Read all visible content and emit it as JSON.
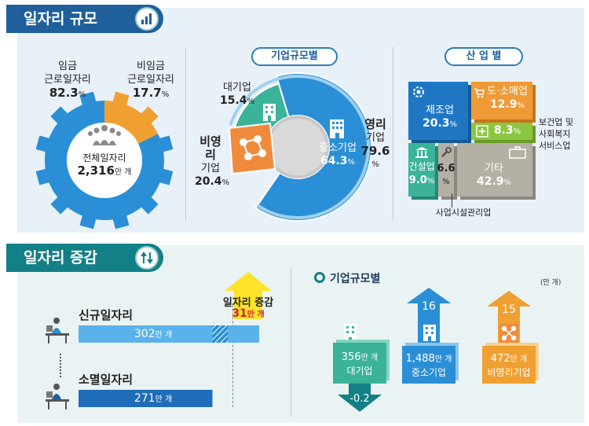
{
  "sections": {
    "size_title": "일자리 규모",
    "change_title": "일자리 증감"
  },
  "size": {
    "gear": {
      "wage_label_1": "임금",
      "wage_label_2": "근로일자리",
      "wage_pct": "82.3",
      "nonwage_label_1": "비임금",
      "nonwage_label_2": "근로일자리",
      "nonwage_pct": "17.7",
      "total_label": "전체일자리",
      "total_value": "2,316",
      "total_unit": "만 개"
    },
    "by_firm": {
      "title": "기업규모별",
      "large_label": "대기업",
      "large_pct": "15.4",
      "sme_label": "중소기업",
      "sme_pct": "64.3",
      "profit_label_1": "영리",
      "profit_label_2": "기업",
      "profit_pct": "79.6",
      "nonprofit_label_1": "비영리",
      "nonprofit_label_2": "기업",
      "nonprofit_pct": "20.4"
    },
    "by_industry": {
      "title": "산 업 별",
      "manuf_label": "제조업",
      "manuf_pct": "20.3",
      "retail_label": "도·소매업",
      "retail_pct": "12.9",
      "health_pct": "8.3",
      "health_label_1": "보건업 및",
      "health_label_2": "사회복지",
      "health_label_3": "서비스업",
      "constr_label": "건설업",
      "constr_pct": "9.0",
      "facility_pct": "6.6",
      "facility_label": "사업시설관리업",
      "other_label": "기타",
      "other_pct": "42.9"
    },
    "pct_sign": "%"
  },
  "change": {
    "new_jobs_label": "신규일자리",
    "new_jobs_value": "302",
    "lost_jobs_label": "소멸일자리",
    "lost_jobs_value": "271",
    "net_label": "일자리 증감",
    "net_value": "31",
    "unit": "만 개",
    "by_firm_title": "기업규모별",
    "unit_note": "(만 개)",
    "large": {
      "value": "356",
      "label": "대기업",
      "change": "-0.2"
    },
    "sme": {
      "value": "1,488",
      "label": "중소기업",
      "change": "16"
    },
    "nonprofit": {
      "value": "472",
      "label": "비영리기업",
      "change": "15"
    }
  },
  "colors": {
    "navy": "#1f5f9c",
    "teal": "#137f86",
    "blue": "#2a8fd6",
    "orange": "#f0a030",
    "green": "#3bb39a",
    "lime": "#8cc63f",
    "gray": "#b5b0a4",
    "yellow": "#ffe22a"
  },
  "chart_data": [
    {
      "type": "pie",
      "categories": [
        "임금 근로일자리",
        "비임금 근로일자리"
      ],
      "values": [
        82.3,
        17.7
      ]
    },
    {
      "type": "pie",
      "categories": [
        "대기업",
        "중소기업",
        "비영리기업"
      ],
      "values": [
        15.4,
        64.3,
        20.4
      ]
    },
    {
      "type": "table",
      "categories": [
        "제조업",
        "도·소매업",
        "보건업 및 사회복지 서비스업",
        "건설업",
        "사업시설관리업",
        "기타"
      ],
      "values": [
        20.3,
        12.9,
        8.3,
        9.0,
        6.6,
        42.9
      ]
    },
    {
      "type": "bar",
      "categories": [
        "신규일자리",
        "소멸일자리",
        "일자리 증감"
      ],
      "values": [
        302,
        271,
        31
      ]
    },
    {
      "type": "bar",
      "categories": [
        "대기업",
        "중소기업",
        "비영리기업"
      ],
      "series": [
        {
          "values": [
            356,
            1488,
            472
          ]
        },
        {
          "values": [
            -0.2,
            16,
            15
          ]
        }
      ]
    }
  ]
}
